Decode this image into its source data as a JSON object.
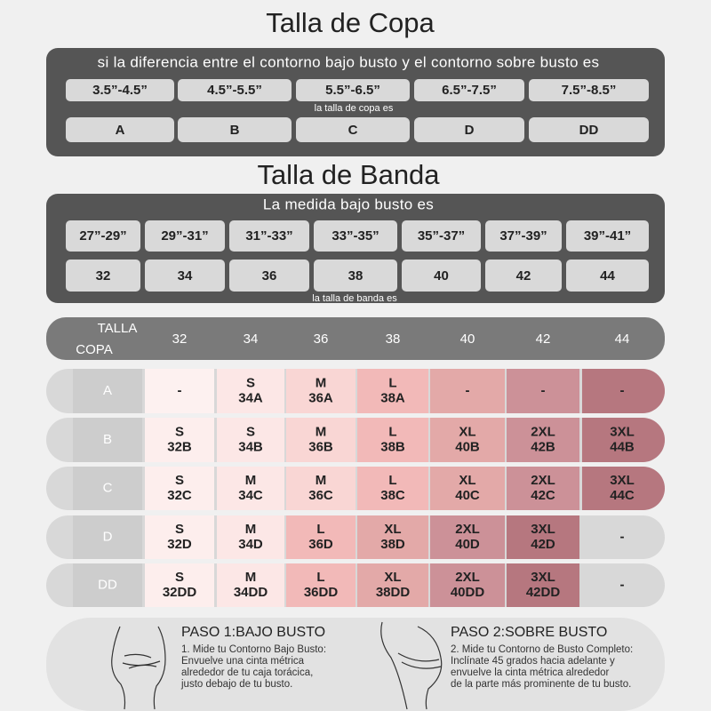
{
  "cup_section": {
    "title": "Talla de Copa",
    "subtitle": "si la diferencia entre el contorno bajo busto y el contorno sobre busto es",
    "ranges": [
      "3.5”-4.5”",
      "4.5”-5.5”",
      "5.5”-6.5”",
      "6.5”-7.5”",
      "7.5”-8.5”"
    ],
    "caption": "la talla de copa es",
    "cups": [
      "A",
      "B",
      "C",
      "D",
      "DD"
    ]
  },
  "band_section": {
    "title": "Talla de Banda",
    "subtitle": "La medida bajo busto es",
    "ranges": [
      "27”-29”",
      "29”-31”",
      "31”-33”",
      "33”-35”",
      "35”-37”",
      "37”-39”",
      "39”-41”"
    ],
    "caption": "la talla de banda es",
    "bands": [
      "32",
      "34",
      "36",
      "38",
      "40",
      "42",
      "44"
    ]
  },
  "size_table": {
    "corner": [
      "TALLA",
      "COPA"
    ],
    "columns": [
      "32",
      "34",
      "36",
      "38",
      "40",
      "42",
      "44"
    ],
    "rows": [
      {
        "cup": "A",
        "cells": [
          {
            "lines": [
              "-"
            ],
            "color": "#fdf1f0"
          },
          {
            "lines": [
              "S",
              "34A"
            ],
            "color": "#fce7e6"
          },
          {
            "lines": [
              "M",
              "36A"
            ],
            "color": "#f9d6d4"
          },
          {
            "lines": [
              "L",
              "38A"
            ],
            "color": "#f2b9b8"
          },
          {
            "lines": [
              "-"
            ],
            "color": "#e3a9a8"
          },
          {
            "lines": [
              "-"
            ],
            "color": "#cc9198"
          },
          {
            "lines": [
              "-"
            ],
            "color": "#b6777f"
          }
        ]
      },
      {
        "cup": "B",
        "cells": [
          {
            "lines": [
              "S",
              "32B"
            ],
            "color": "#fdeeed"
          },
          {
            "lines": [
              "S",
              "34B"
            ],
            "color": "#fce7e6"
          },
          {
            "lines": [
              "M",
              "36B"
            ],
            "color": "#f9d6d4"
          },
          {
            "lines": [
              "L",
              "38B"
            ],
            "color": "#f2b9b8"
          },
          {
            "lines": [
              "XL",
              "40B"
            ],
            "color": "#e3a9a8"
          },
          {
            "lines": [
              "2XL",
              "42B"
            ],
            "color": "#cc9198"
          },
          {
            "lines": [
              "3XL",
              "44B"
            ],
            "color": "#b6777f"
          }
        ]
      },
      {
        "cup": "C",
        "cells": [
          {
            "lines": [
              "S",
              "32C"
            ],
            "color": "#fdeeed"
          },
          {
            "lines": [
              "M",
              "34C"
            ],
            "color": "#fce7e6"
          },
          {
            "lines": [
              "M",
              "36C"
            ],
            "color": "#f9d6d4"
          },
          {
            "lines": [
              "L",
              "38C"
            ],
            "color": "#f2b9b8"
          },
          {
            "lines": [
              "XL",
              "40C"
            ],
            "color": "#e3a9a8"
          },
          {
            "lines": [
              "2XL",
              "42C"
            ],
            "color": "#cc9198"
          },
          {
            "lines": [
              "3XL",
              "44C"
            ],
            "color": "#b6777f"
          }
        ]
      },
      {
        "cup": "D",
        "cells": [
          {
            "lines": [
              "S",
              "32D"
            ],
            "color": "#fdeeed"
          },
          {
            "lines": [
              "M",
              "34D"
            ],
            "color": "#fce7e6"
          },
          {
            "lines": [
              "L",
              "36D"
            ],
            "color": "#f2b9b8"
          },
          {
            "lines": [
              "XL",
              "38D"
            ],
            "color": "#e3a9a8"
          },
          {
            "lines": [
              "2XL",
              "40D"
            ],
            "color": "#cc9198"
          },
          {
            "lines": [
              "3XL",
              "42D"
            ],
            "color": "#b6777f"
          },
          {
            "lines": [
              "-"
            ]
          }
        ]
      },
      {
        "cup": "DD",
        "cells": [
          {
            "lines": [
              "S",
              "32DD"
            ],
            "color": "#fdeeed"
          },
          {
            "lines": [
              "M",
              "34DD"
            ],
            "color": "#fce7e6"
          },
          {
            "lines": [
              "L",
              "36DD"
            ],
            "color": "#f2b9b8"
          },
          {
            "lines": [
              "XL",
              "38DD"
            ],
            "color": "#e3a9a8"
          },
          {
            "lines": [
              "2XL",
              "40DD"
            ],
            "color": "#cc9198"
          },
          {
            "lines": [
              "3XL",
              "42DD"
            ],
            "color": "#b6777f"
          },
          {
            "lines": [
              "-"
            ]
          }
        ]
      }
    ]
  },
  "steps": [
    {
      "title": "PASO 1:BAJO BUSTO",
      "lines": [
        "1. Mide tu Contorno Bajo Busto:",
        "Envuelve una cinta métrica",
        "alrededor de tu caja torácica,",
        "justo debajo de tu busto."
      ]
    },
    {
      "title": "PASO 2:SOBRE BUSTO",
      "lines": [
        "2. Mide tu Contorno de Busto Completo:",
        "Inclínate 45 grados hacia adelante y",
        "envuelve la cinta métrica alrededor",
        "de la parte más prominente de tu busto."
      ]
    }
  ]
}
